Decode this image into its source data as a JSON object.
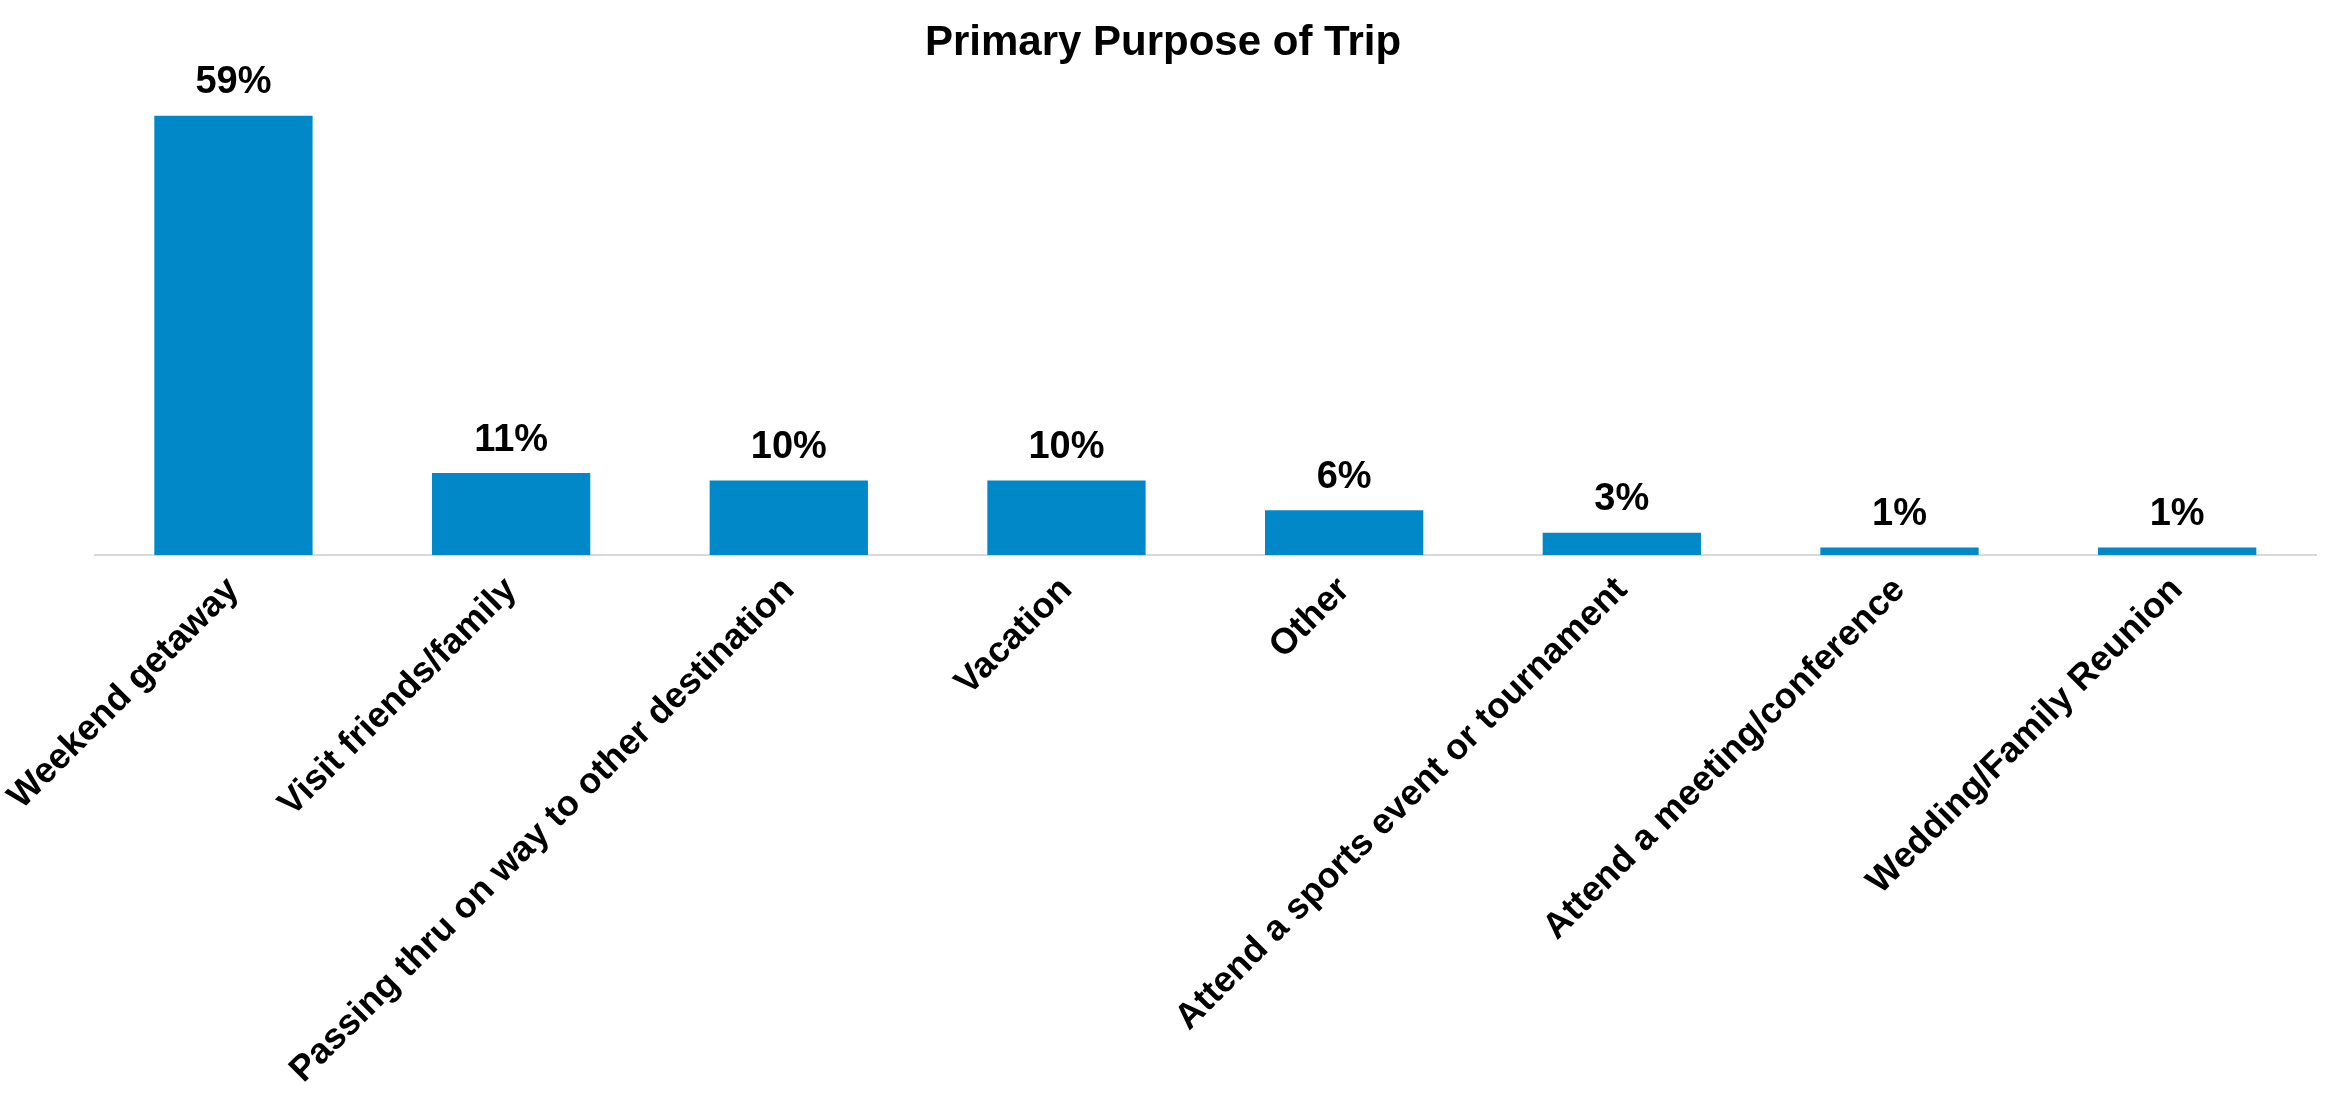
{
  "chart_data": {
    "type": "bar",
    "title": "Primary Purpose of Trip",
    "categories": [
      "Weekend getaway",
      "Visit friends/family",
      "Passing thru on way to other destination",
      "Vacation",
      "Other",
      "Attend a sports event or tournament",
      "Attend a meeting/conference",
      "Wedding/Family Reunion"
    ],
    "values": [
      59,
      11,
      10,
      10,
      6,
      3,
      1,
      1
    ],
    "value_labels": [
      "59%",
      "11%",
      "10%",
      "10%",
      "6%",
      "3%",
      "1%",
      "1%"
    ],
    "color": "#0088c8",
    "grid": false,
    "legend": false
  }
}
